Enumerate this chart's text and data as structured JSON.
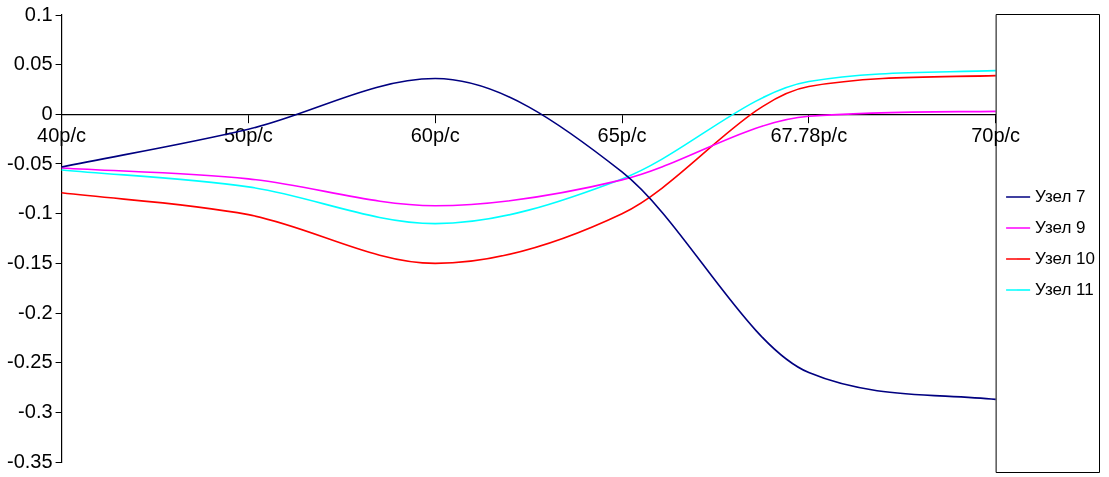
{
  "chart_data": {
    "type": "line",
    "categories": [
      "40р/с",
      "50р/с",
      "60р/с",
      "65р/с",
      "67.78р/с",
      "70р/с"
    ],
    "series": [
      {
        "name": "Узел 7",
        "color": "#000080",
        "values": [
          -0.053,
          -0.015,
          0.036,
          -0.058,
          -0.26,
          -0.287
        ]
      },
      {
        "name": "Узел 9",
        "color": "#ff00ff",
        "values": [
          -0.054,
          -0.065,
          -0.092,
          -0.066,
          -0.002,
          0.003
        ]
      },
      {
        "name": "Узел 10",
        "color": "#ff0000",
        "values": [
          -0.079,
          -0.101,
          -0.15,
          -0.1,
          0.028,
          0.039
        ]
      },
      {
        "name": "Узел 11",
        "color": "#00ffff",
        "values": [
          -0.056,
          -0.073,
          -0.11,
          -0.065,
          0.033,
          0.044
        ]
      }
    ],
    "ylim": [
      -0.35,
      0.1
    ],
    "yticks": [
      -0.35,
      -0.3,
      -0.25,
      -0.2,
      -0.15,
      -0.1,
      -0.05,
      0,
      0.05,
      0.1
    ],
    "grid": false,
    "legend": "right",
    "marker": "none",
    "line_style": "solid"
  }
}
